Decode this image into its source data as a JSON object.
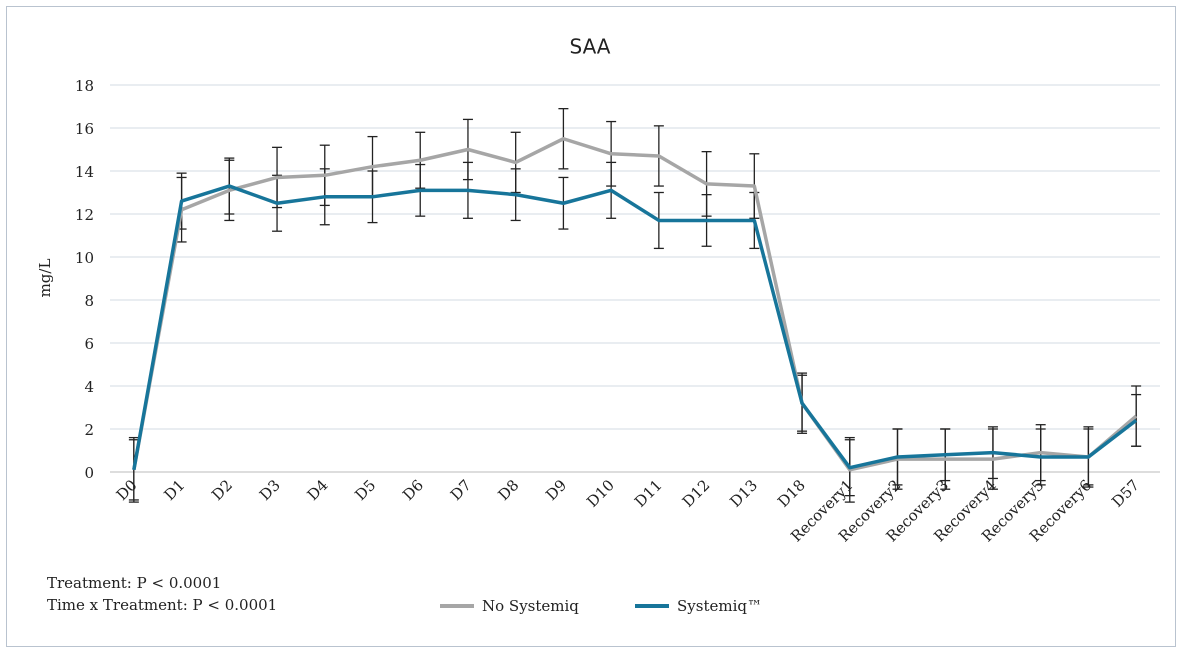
{
  "chart_data": {
    "type": "line",
    "title": "SAA",
    "y_label": "mg/L",
    "categories": [
      "D0",
      "D1",
      "D2",
      "D3",
      "D4",
      "D5",
      "D6",
      "D7",
      "D8",
      "D9",
      "D10",
      "D11",
      "D12",
      "D13",
      "D18",
      "Recovery1",
      "Recovery2",
      "Recovery3",
      "Recovery4",
      "Recovery5",
      "Recovery6",
      "D57"
    ],
    "series": [
      {
        "name": "No Systemiq",
        "color": "#a6a6a6",
        "values": [
          0.1,
          12.2,
          13.1,
          13.7,
          13.8,
          14.2,
          14.5,
          15.0,
          14.4,
          15.5,
          14.8,
          14.7,
          13.4,
          13.3,
          3.2,
          0.1,
          0.6,
          0.6,
          0.6,
          0.9,
          0.7,
          2.6
        ],
        "errors": [
          1.5,
          1.5,
          1.4,
          1.4,
          1.4,
          1.4,
          1.3,
          1.4,
          1.4,
          1.4,
          1.5,
          1.4,
          1.5,
          1.5,
          1.4,
          1.5,
          1.4,
          1.4,
          1.4,
          1.3,
          1.4,
          1.4
        ]
      },
      {
        "name": "Systemiq™",
        "color": "#17759a",
        "values": [
          0.1,
          12.6,
          13.3,
          12.5,
          12.8,
          12.8,
          13.1,
          13.1,
          12.9,
          12.5,
          13.1,
          11.7,
          11.7,
          11.7,
          3.2,
          0.2,
          0.7,
          0.8,
          0.9,
          0.7,
          0.7,
          2.4
        ],
        "errors": [
          1.4,
          1.3,
          1.3,
          1.3,
          1.3,
          1.2,
          1.2,
          1.3,
          1.2,
          1.2,
          1.3,
          1.3,
          1.2,
          1.3,
          1.3,
          1.3,
          1.3,
          1.2,
          1.2,
          1.3,
          1.3,
          1.2
        ]
      }
    ],
    "ylim": [
      0,
      18
    ],
    "yticks": [
      0,
      2,
      4,
      6,
      8,
      10,
      12,
      14,
      16,
      18
    ],
    "grid": true,
    "annotations": [
      "Treatment: P < 0.0001",
      "Time x Treatment: P < 0.0001"
    ]
  }
}
